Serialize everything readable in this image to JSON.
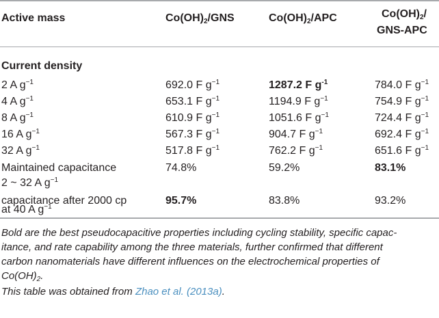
{
  "table": {
    "headers": {
      "col0": "Active mass",
      "col1_base": "Co(OH)",
      "col1_sub": "2",
      "col1_rest": "/GNS",
      "col2_base": "Co(OH)",
      "col2_sub": "2",
      "col2_rest": "/APC",
      "col3_line1_base": "Co(OH)",
      "col3_line1_sub": "2",
      "col3_line1_rest": "/",
      "col3_line2": "GNS-APC"
    },
    "section_label": "Current density",
    "rows": [
      {
        "label": "2 A g",
        "label_sup": "−1",
        "c1": "692.0 F g",
        "c2": "1287.2 F g",
        "c3": "784.0 F g"
      },
      {
        "label": "4 A g",
        "label_sup": "−1",
        "c1": "653.1 F g",
        "c2": "1194.9 F g",
        "c3": "754.9 F g"
      },
      {
        "label": "8 A g",
        "label_sup": "−1",
        "c1": "610.9 F g",
        "c2": "1051.6 F g",
        "c3": "724.4 F g"
      },
      {
        "label": "16 A g",
        "label_sup": "−1",
        "c1": "567.3 F g",
        "c2": "904.7 F g",
        "c3": "692.4 F g"
      },
      {
        "label": "32 A g",
        "label_sup": "−1",
        "c1": "517.8 F g",
        "c2": "762.2 F g",
        "c3": "651.6 F g"
      }
    ],
    "unit_sup": "−1",
    "unit_sup_bold": "-1",
    "maintained": {
      "label_line1": "Maintained capacitance",
      "label_line2": "2 ~ 32 A g",
      "label_sup": "−1",
      "c1": "74.8%",
      "c2": "59.2%",
      "c3": "83.1%"
    },
    "cycling": {
      "label_line1": "capacitance after 2000 cp",
      "label_line2": "at 40 A g",
      "label_sup": "−1",
      "c1": "95.7%",
      "c2": "83.8%",
      "c3": "93.2%"
    }
  },
  "footnote": {
    "line1": "Bold are the best pseudocapacitive properties including cycling stability, specific capac-",
    "line2": "itance, and rate capability among the three materials, further confirmed that different",
    "line3": "carbon nanomaterials have different influences on the electrochemical properties of",
    "line4_base": "Co(OH)",
    "line4_sub": "2",
    "line4_rest": ".",
    "source_prefix": "This table was obtained from ",
    "source_link": "Zhao et al. (2013a)",
    "source_suffix": "."
  }
}
